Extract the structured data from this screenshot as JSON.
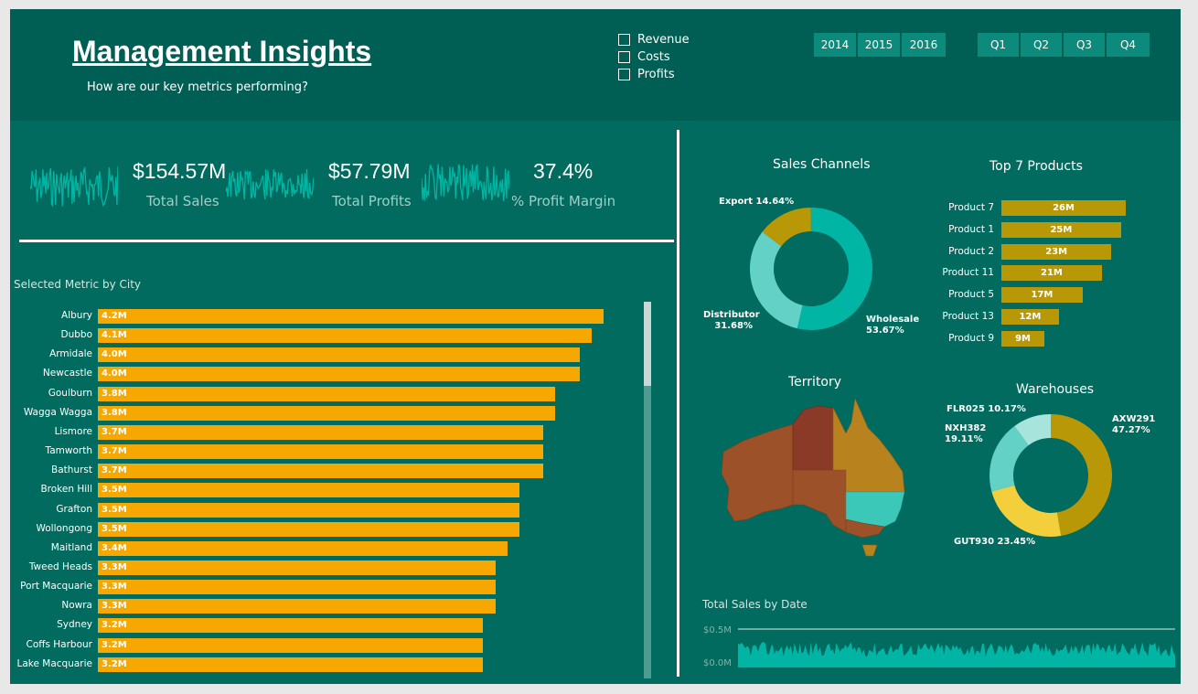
{
  "header": {
    "title": "Management Insights",
    "subtitle": "How are our key metrics performing?"
  },
  "metric_legend": [
    {
      "label": "Revenue",
      "checked": false
    },
    {
      "label": "Costs",
      "checked": false
    },
    {
      "label": "Profits",
      "checked": false
    }
  ],
  "year_slicer": [
    "2014",
    "2015",
    "2016"
  ],
  "quarter_slicer": [
    "Q1",
    "Q2",
    "Q3",
    "Q4"
  ],
  "kpis": [
    {
      "value": "$154.57M",
      "label": "Total Sales"
    },
    {
      "value": "$57.79M",
      "label": "Total Profits"
    },
    {
      "value": "37.4%",
      "label": "% Profit Margin"
    }
  ],
  "colors": {
    "background": "#006b5e",
    "header": "#005f54",
    "city_bar": "#f6a800",
    "product_bar": "#b89807",
    "teal_accent": "#00b5a3"
  },
  "chart_data": [
    {
      "type": "bar",
      "title": "Selected Metric by City",
      "orientation": "horizontal",
      "categories": [
        "Albury",
        "Dubbo",
        "Armidale",
        "Newcastle",
        "Goulburn",
        "Wagga Wagga",
        "Lismore",
        "Tamworth",
        "Bathurst",
        "Broken Hill",
        "Grafton",
        "Wollongong",
        "Maitland",
        "Tweed Heads",
        "Port Macquarie",
        "Nowra",
        "Sydney",
        "Coffs Harbour",
        "Lake Macquarie"
      ],
      "values": [
        4.2,
        4.1,
        4.0,
        4.0,
        3.8,
        3.8,
        3.7,
        3.7,
        3.7,
        3.5,
        3.5,
        3.5,
        3.4,
        3.3,
        3.3,
        3.3,
        3.2,
        3.2,
        3.2
      ],
      "labels": [
        "4.2M",
        "4.1M",
        "4.0M",
        "4.0M",
        "3.8M",
        "3.8M",
        "3.7M",
        "3.7M",
        "3.7M",
        "3.5M",
        "3.5M",
        "3.5M",
        "3.4M",
        "3.3M",
        "3.3M",
        "3.3M",
        "3.2M",
        "3.2M",
        "3.2M"
      ]
    },
    {
      "type": "pie",
      "title": "Sales Channels",
      "slices": [
        {
          "label": "Export 14.64%",
          "value": 14.64,
          "color": "#b89807"
        },
        {
          "label": "Wholesale",
          "pct": "53.67%",
          "value": 53.67,
          "color": "#00b5a3"
        },
        {
          "label": "Distributor",
          "pct": "31.68%",
          "value": 31.68,
          "color": "#63d1c6"
        }
      ]
    },
    {
      "type": "bar",
      "title": "Top 7 Products",
      "orientation": "horizontal",
      "categories": [
        "Product 7",
        "Product 1",
        "Product 2",
        "Product 11",
        "Product 5",
        "Product 13",
        "Product 9"
      ],
      "values": [
        26,
        25,
        23,
        21,
        17,
        12,
        9
      ],
      "labels": [
        "26M",
        "25M",
        "23M",
        "21M",
        "17M",
        "12M",
        "9M"
      ]
    },
    {
      "type": "pie",
      "title": "Warehouses",
      "slices": [
        {
          "label": "AXW291",
          "pct": "47.27%",
          "value": 47.27,
          "color": "#b89807"
        },
        {
          "label": "GUT930 23.45%",
          "value": 23.45,
          "color": "#f4cf3c"
        },
        {
          "label": "NXH382",
          "pct": "19.11%",
          "value": 19.11,
          "color": "#63d1c6"
        },
        {
          "label": "FLR025 10.17%",
          "value": 10.17,
          "color": "#a6e4dc"
        }
      ]
    },
    {
      "type": "area",
      "title": "Total Sales by Date",
      "y_ticks": [
        "$0.5M",
        "$0.0M"
      ]
    }
  ],
  "territory": {
    "title": "Territory"
  }
}
